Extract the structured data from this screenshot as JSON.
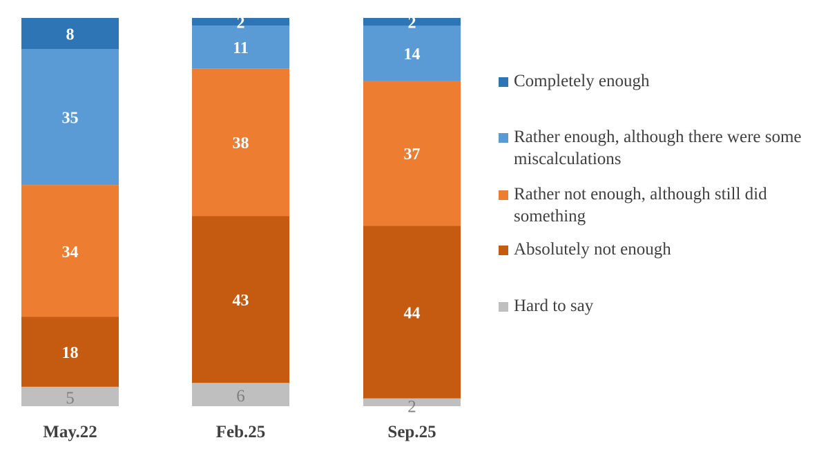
{
  "chart_data": {
    "type": "bar",
    "stacked": true,
    "categories": [
      "May.22",
      "Feb.25",
      "Sep.25"
    ],
    "series": [
      {
        "name": "Hard to say",
        "values": [
          5,
          6,
          2
        ],
        "color": "#BFBFBF",
        "label_color": "#7F7F7F"
      },
      {
        "name": "Absolutely not enough",
        "values": [
          18,
          43,
          44
        ],
        "color": "#C55A11",
        "label_color": "#FFFFFF"
      },
      {
        "name": "Rather not enough, although still did something",
        "values": [
          34,
          38,
          37
        ],
        "color": "#ED7D31",
        "label_color": "#FFFFFF"
      },
      {
        "name": "Rather enough, although there were some miscalculations",
        "values": [
          35,
          11,
          14
        ],
        "color": "#5B9BD5",
        "label_color": "#FFFFFF"
      },
      {
        "name": "Completely enough",
        "values": [
          8,
          2,
          2
        ],
        "color": "#2E75B6",
        "label_color": "#FFFFFF"
      }
    ],
    "legend_position": "right",
    "grid": false,
    "ylim": [
      0,
      100
    ]
  }
}
